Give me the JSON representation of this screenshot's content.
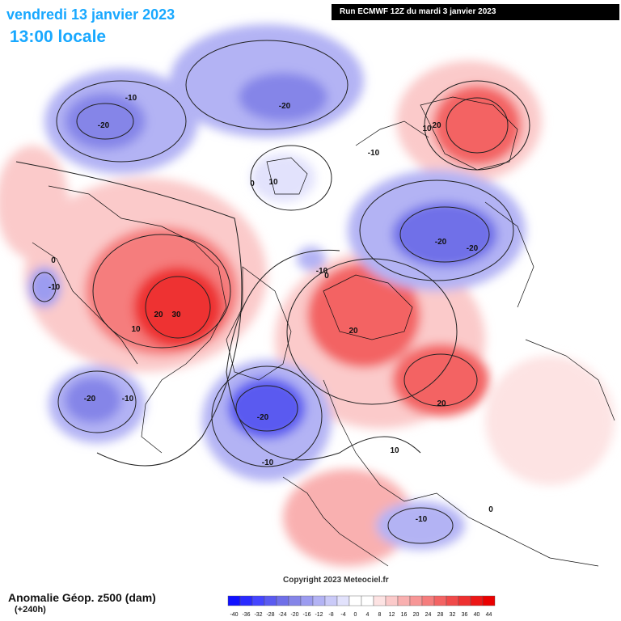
{
  "header": {
    "date": "vendredi 13 janvier 2023",
    "local_time": "13:00 locale",
    "run_info": "Run ECMWF 12Z du mardi 3 janvier 2023"
  },
  "footer": {
    "title": "Anomalie Géop. z500 (dam)",
    "lead_time": "(+240h)",
    "copyright": "Copyright 2023 Meteociel.fr"
  },
  "legend": {
    "values": [
      "-40",
      "-36",
      "-32",
      "-28",
      "-24",
      "-20",
      "-16",
      "-12",
      "-8",
      "-4",
      "0",
      "4",
      "8",
      "12",
      "16",
      "20",
      "24",
      "28",
      "32",
      "36",
      "40",
      "44"
    ],
    "colors": [
      "#1010ff",
      "#2a2aff",
      "#4545ff",
      "#5a5af0",
      "#6f6fe8",
      "#8585e8",
      "#9c9cf0",
      "#b3b3f4",
      "#cacaf8",
      "#e2e2fc",
      "#ffffff",
      "#ffffff",
      "#fde3e3",
      "#fbcaca",
      "#f9b0b0",
      "#f79696",
      "#f57d7d",
      "#f36363",
      "#f04a4a",
      "#ee3030",
      "#ec1717",
      "#ea0000"
    ]
  },
  "contour_labels": [
    {
      "text": "-20"
    },
    {
      "text": "-10"
    },
    {
      "text": "-20"
    },
    {
      "text": "-20"
    },
    {
      "text": "10"
    },
    {
      "text": "20"
    },
    {
      "text": "-10"
    },
    {
      "text": "0"
    },
    {
      "text": "10"
    },
    {
      "text": "-20"
    },
    {
      "text": "0"
    },
    {
      "text": "-10"
    },
    {
      "text": "-10"
    },
    {
      "text": "0"
    },
    {
      "text": "20"
    },
    {
      "text": "30"
    },
    {
      "text": "10"
    },
    {
      "text": "20"
    },
    {
      "text": "-20"
    },
    {
      "text": "-10"
    },
    {
      "text": "-20"
    },
    {
      "text": "-10"
    },
    {
      "text": "20"
    },
    {
      "text": "10"
    },
    {
      "text": "-10"
    },
    {
      "text": "0"
    }
  ]
}
